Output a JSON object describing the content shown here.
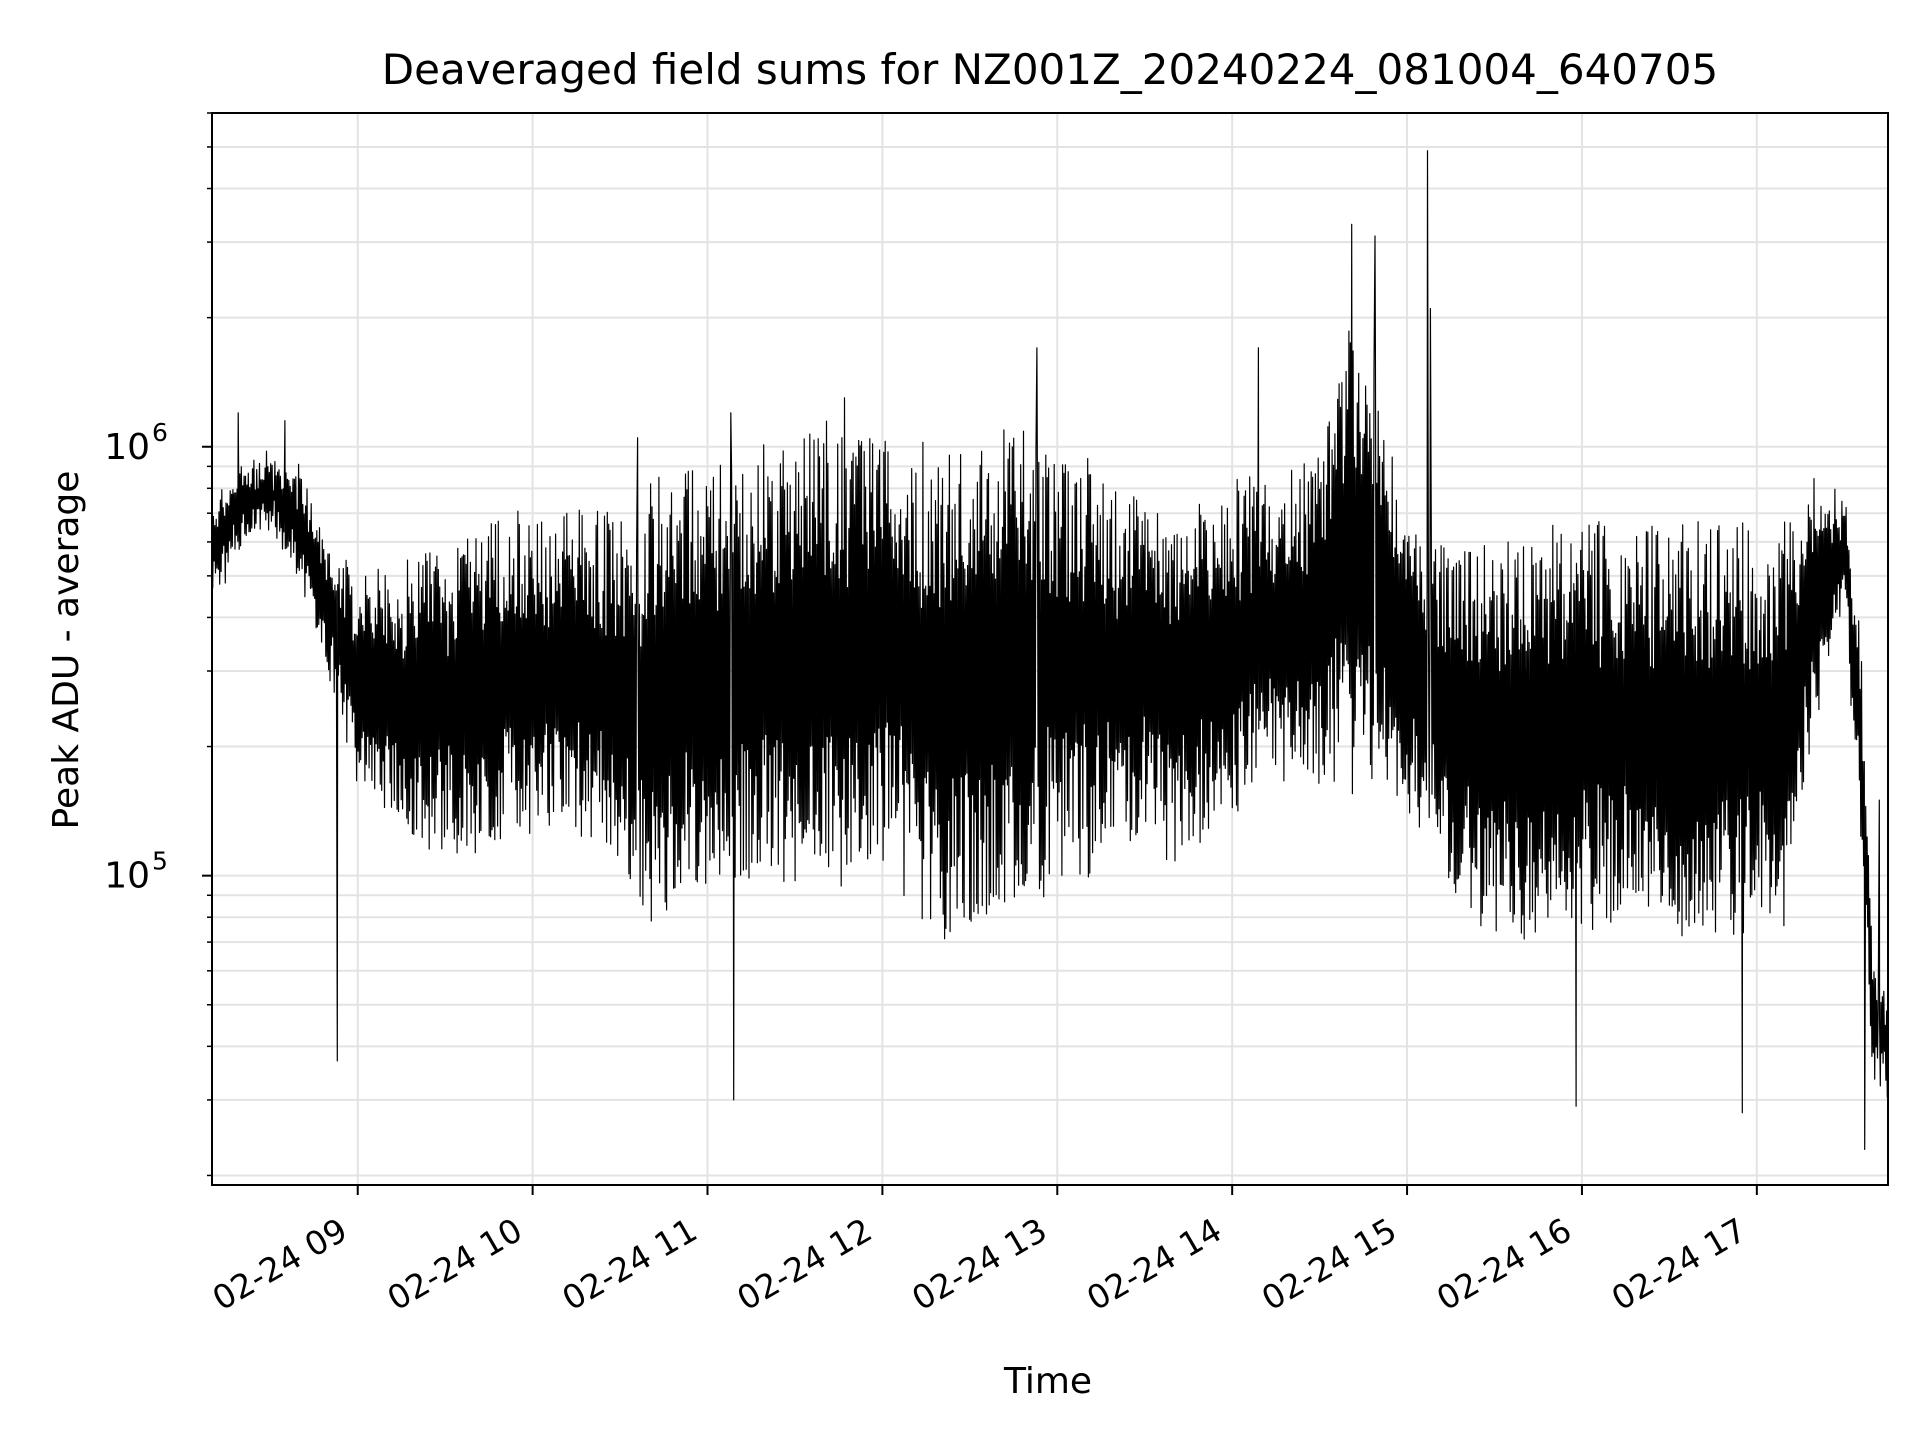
{
  "chart_data": {
    "type": "line",
    "title": "Deaveraged field sums for NZ001Z_20240224_081004_640705",
    "xlabel": "Time",
    "ylabel": "Peak ADU - average",
    "x_range": [
      "2024-02-24 08:10",
      "2024-02-24 17:45"
    ],
    "y_scale": "log",
    "ylim": [
      19000,
      6000000
    ],
    "grid": true,
    "line_color": "#000000",
    "x_ticks": [
      {
        "time": "2024-02-24 09:00",
        "label": "02-24 09"
      },
      {
        "time": "2024-02-24 10:00",
        "label": "02-24 10"
      },
      {
        "time": "2024-02-24 11:00",
        "label": "02-24 11"
      },
      {
        "time": "2024-02-24 12:00",
        "label": "02-24 12"
      },
      {
        "time": "2024-02-24 13:00",
        "label": "02-24 13"
      },
      {
        "time": "2024-02-24 14:00",
        "label": "02-24 14"
      },
      {
        "time": "2024-02-24 15:00",
        "label": "02-24 15"
      },
      {
        "time": "2024-02-24 16:00",
        "label": "02-24 16"
      },
      {
        "time": "2024-02-24 17:00",
        "label": "02-24 17"
      }
    ],
    "y_ticks": [
      {
        "value": 100000,
        "base": "10",
        "exp": "5"
      },
      {
        "value": 1000000,
        "base": "10",
        "exp": "6"
      }
    ],
    "series": [
      {
        "x": [
          "2024-02-24 08:10",
          "2024-02-24 08:20",
          "2024-02-24 08:30",
          "2024-02-24 08:40",
          "2024-02-24 08:50",
          "2024-02-24 09:00",
          "2024-02-24 09:10",
          "2024-02-24 09:20",
          "2024-02-24 09:30",
          "2024-02-24 09:40",
          "2024-02-24 09:50",
          "2024-02-24 10:00",
          "2024-02-24 10:10",
          "2024-02-24 10:20",
          "2024-02-24 10:30",
          "2024-02-24 10:40",
          "2024-02-24 10:50",
          "2024-02-24 11:00",
          "2024-02-24 11:10",
          "2024-02-24 11:20",
          "2024-02-24 11:30",
          "2024-02-24 11:40",
          "2024-02-24 11:50",
          "2024-02-24 12:00",
          "2024-02-24 12:10",
          "2024-02-24 12:20",
          "2024-02-24 12:30",
          "2024-02-24 12:40",
          "2024-02-24 12:50",
          "2024-02-24 13:00",
          "2024-02-24 13:10",
          "2024-02-24 13:20",
          "2024-02-24 13:30",
          "2024-02-24 13:40",
          "2024-02-24 13:50",
          "2024-02-24 14:00",
          "2024-02-24 14:10",
          "2024-02-24 14:20",
          "2024-02-24 14:30",
          "2024-02-24 14:40",
          "2024-02-24 14:50",
          "2024-02-24 15:00",
          "2024-02-24 15:10",
          "2024-02-24 15:20",
          "2024-02-24 15:30",
          "2024-02-24 15:40",
          "2024-02-24 15:50",
          "2024-02-24 16:00",
          "2024-02-24 16:10",
          "2024-02-24 16:20",
          "2024-02-24 16:30",
          "2024-02-24 16:40",
          "2024-02-24 16:50",
          "2024-02-24 17:00",
          "2024-02-24 17:10",
          "2024-02-24 17:20",
          "2024-02-24 17:30",
          "2024-02-24 17:35",
          "2024-02-24 17:40",
          "2024-02-24 17:45"
        ],
        "y_low": [
          450000,
          600000,
          650000,
          500000,
          300000,
          180000,
          150000,
          130000,
          120000,
          120000,
          130000,
          140000,
          140000,
          130000,
          110000,
          80000,
          100000,
          100000,
          100000,
          110000,
          100000,
          110000,
          110000,
          120000,
          100000,
          80000,
          80000,
          90000,
          100000,
          110000,
          110000,
          120000,
          130000,
          120000,
          130000,
          150000,
          170000,
          180000,
          180000,
          180000,
          180000,
          160000,
          120000,
          90000,
          80000,
          80000,
          80000,
          80000,
          85000,
          85000,
          80000,
          80000,
          80000,
          80000,
          80000,
          250000,
          450000,
          150000,
          35000,
          30000
        ],
        "y_high": [
          700000,
          850000,
          950000,
          900000,
          550000,
          500000,
          450000,
          500000,
          550000,
          600000,
          600000,
          650000,
          650000,
          650000,
          650000,
          700000,
          800000,
          850000,
          850000,
          900000,
          950000,
          1000000,
          1000000,
          950000,
          900000,
          900000,
          900000,
          950000,
          1000000,
          900000,
          850000,
          750000,
          700000,
          650000,
          700000,
          750000,
          800000,
          800000,
          900000,
          1800000,
          1500000,
          600000,
          550000,
          550000,
          550000,
          550000,
          600000,
          600000,
          600000,
          600000,
          580000,
          580000,
          580000,
          580000,
          580000,
          800000,
          750000,
          400000,
          60000,
          50000
        ],
        "spikes": [
          {
            "x": "2024-02-24 08:19",
            "y": 1200000
          },
          {
            "x": "2024-02-24 08:35",
            "y": 1150000
          },
          {
            "x": "2024-02-24 08:53",
            "y": 37000
          },
          {
            "x": "2024-02-24 10:36",
            "y": 1050000
          },
          {
            "x": "2024-02-24 11:08",
            "y": 1200000
          },
          {
            "x": "2024-02-24 11:09",
            "y": 30000
          },
          {
            "x": "2024-02-24 11:47",
            "y": 1300000
          },
          {
            "x": "2024-02-24 12:53",
            "y": 1700000
          },
          {
            "x": "2024-02-24 14:09",
            "y": 1700000
          },
          {
            "x": "2024-02-24 14:41",
            "y": 3300000
          },
          {
            "x": "2024-02-24 14:49",
            "y": 3100000
          },
          {
            "x": "2024-02-24 15:07",
            "y": 4900000
          },
          {
            "x": "2024-02-24 15:08",
            "y": 2100000
          },
          {
            "x": "2024-02-24 15:58",
            "y": 29000
          },
          {
            "x": "2024-02-24 16:55",
            "y": 28000
          },
          {
            "x": "2024-02-24 17:37",
            "y": 23000
          },
          {
            "x": "2024-02-24 17:42",
            "y": 150000
          }
        ],
        "end_values": {
          "x": "2024-02-24 17:45",
          "y": 45000
        }
      }
    ]
  }
}
